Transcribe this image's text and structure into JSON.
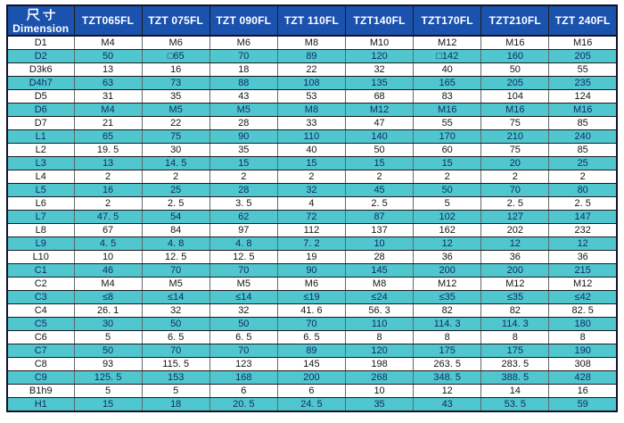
{
  "table": {
    "header": {
      "dimension_label_cn": "尺寸",
      "dimension_label_en": "Dimension",
      "columns": [
        "TZT065FL",
        "TZT 075FL",
        "TZT 090FL",
        "TZT 110FL",
        "TZT140FL",
        "TZT170FL",
        "TZT210FL",
        "TZT 240FL"
      ]
    },
    "rows": [
      {
        "label": "D1",
        "values": [
          "M4",
          "M6",
          "M6",
          "M8",
          "M10",
          "M12",
          "M16",
          "M16"
        ]
      },
      {
        "label": "D2",
        "values": [
          "50",
          "□65",
          "70",
          "89",
          "120",
          "□142",
          "160",
          "205"
        ]
      },
      {
        "label": "D3k6",
        "values": [
          "13",
          "16",
          "18",
          "22",
          "32",
          "40",
          "50",
          "55"
        ]
      },
      {
        "label": "D4h7",
        "values": [
          "63",
          "73",
          "88",
          "108",
          "135",
          "165",
          "205",
          "235"
        ]
      },
      {
        "label": "D5",
        "values": [
          "31",
          "35",
          "43",
          "53",
          "68",
          "83",
          "104",
          "124"
        ]
      },
      {
        "label": "D6",
        "values": [
          "M4",
          "M5",
          "M5",
          "M8",
          "M12",
          "M16",
          "M16",
          "M16"
        ]
      },
      {
        "label": "D7",
        "values": [
          "21",
          "22",
          "28",
          "33",
          "47",
          "55",
          "75",
          "85"
        ]
      },
      {
        "label": "L1",
        "values": [
          "65",
          "75",
          "90",
          "110",
          "140",
          "170",
          "210",
          "240"
        ]
      },
      {
        "label": "L2",
        "values": [
          "19. 5",
          "30",
          "35",
          "40",
          "50",
          "60",
          "75",
          "85"
        ]
      },
      {
        "label": "L3",
        "values": [
          "13",
          "14. 5",
          "15",
          "15",
          "15",
          "15",
          "20",
          "25"
        ]
      },
      {
        "label": "L4",
        "values": [
          "2",
          "2",
          "2",
          "2",
          "2",
          "2",
          "2",
          "2"
        ]
      },
      {
        "label": "L5",
        "values": [
          "16",
          "25",
          "28",
          "32",
          "45",
          "50",
          "70",
          "80"
        ]
      },
      {
        "label": "L6",
        "values": [
          "2",
          "2. 5",
          "3. 5",
          "4",
          "2. 5",
          "5",
          "2. 5",
          "2. 5"
        ]
      },
      {
        "label": "L7",
        "values": [
          "47. 5",
          "54",
          "62",
          "72",
          "87",
          "102",
          "127",
          "147"
        ]
      },
      {
        "label": "L8",
        "values": [
          "67",
          "84",
          "97",
          "112",
          "137",
          "162",
          "202",
          "232"
        ]
      },
      {
        "label": "L9",
        "values": [
          "4. 5",
          "4. 8",
          "4. 8",
          "7. 2",
          "10",
          "12",
          "12",
          "12"
        ]
      },
      {
        "label": "L10",
        "values": [
          "10",
          "12. 5",
          "12. 5",
          "19",
          "28",
          "36",
          "36",
          "36"
        ]
      },
      {
        "label": "C1",
        "values": [
          "46",
          "70",
          "70",
          "90",
          "145",
          "200",
          "200",
          "215"
        ]
      },
      {
        "label": "C2",
        "values": [
          "M4",
          "M5",
          "M5",
          "M6",
          "M8",
          "M12",
          "M12",
          "M12"
        ]
      },
      {
        "label": "C3",
        "values": [
          "≤8",
          "≤14",
          "≤14",
          "≤19",
          "≤24",
          "≤35",
          "≤35",
          "≤42"
        ]
      },
      {
        "label": "C4",
        "values": [
          "26. 1",
          "32",
          "32",
          "41. 6",
          "56. 3",
          "82",
          "82",
          "82. 5"
        ]
      },
      {
        "label": "C5",
        "values": [
          "30",
          "50",
          "50",
          "70",
          "110",
          "114. 3",
          "114. 3",
          "180"
        ]
      },
      {
        "label": "C6",
        "values": [
          "5",
          "6. 5",
          "6. 5",
          "6. 5",
          "8",
          "8",
          "8",
          "8"
        ]
      },
      {
        "label": "C7",
        "values": [
          "50",
          "70",
          "70",
          "89",
          "120",
          "175",
          "175",
          "190"
        ]
      },
      {
        "label": "C8",
        "values": [
          "93",
          "115. 5",
          "123",
          "145",
          "198",
          "263. 5",
          "283. 5",
          "308"
        ]
      },
      {
        "label": "C9",
        "values": [
          "125. 5",
          "153",
          "168",
          "200",
          "268",
          "348. 5",
          "388. 5",
          "428"
        ]
      },
      {
        "label": "B1h9",
        "values": [
          "5",
          "5",
          "6",
          "6",
          "10",
          "12",
          "14",
          "16"
        ]
      },
      {
        "label": "H1",
        "values": [
          "15",
          "18",
          "20. 5",
          "24. 5",
          "35",
          "43",
          "53. 5",
          "59"
        ]
      }
    ],
    "colors": {
      "header_bg": "#1b52ae",
      "header_text": "#ffffff",
      "row_bg": "#ffffff",
      "row_alt_bg": "#50c6ce",
      "text": "#151515",
      "alt_text": "#0f2d66",
      "grid": "#1c1c1c"
    }
  }
}
